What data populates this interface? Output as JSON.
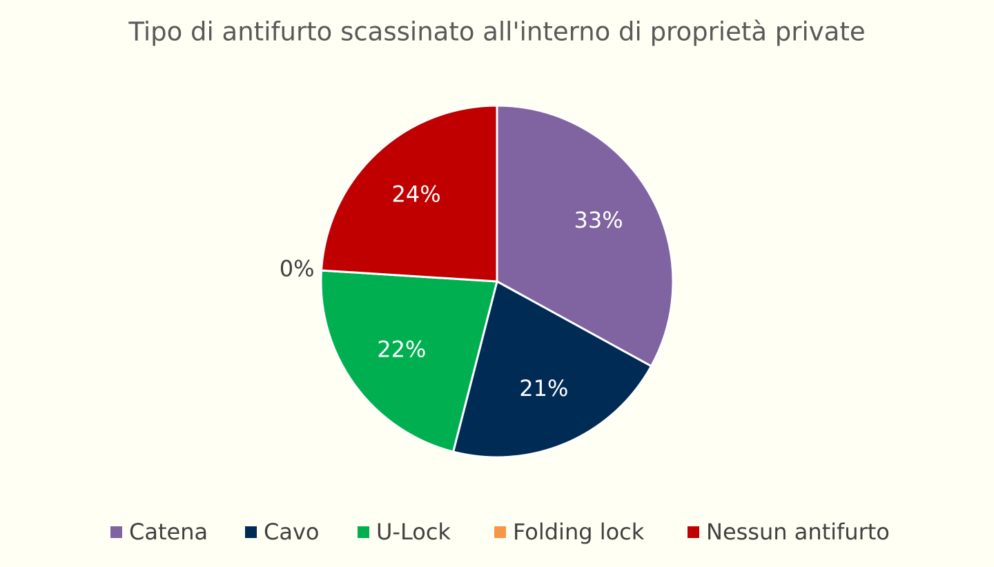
{
  "chart_data": {
    "type": "pie",
    "title": "Tipo di antifurto scassinato all'interno di proprietà private",
    "categories": [
      "Catena",
      "Cavo",
      "U-Lock",
      "Folding lock",
      "Nessun antifurto"
    ],
    "values": [
      33,
      21,
      22,
      0,
      24
    ],
    "value_labels": [
      "33%",
      "21%",
      "22%",
      "0%",
      "24%"
    ],
    "colors": [
      "#8064a2",
      "#002b55",
      "#00b050",
      "#f79646",
      "#c00000"
    ],
    "legend": "bottom"
  }
}
